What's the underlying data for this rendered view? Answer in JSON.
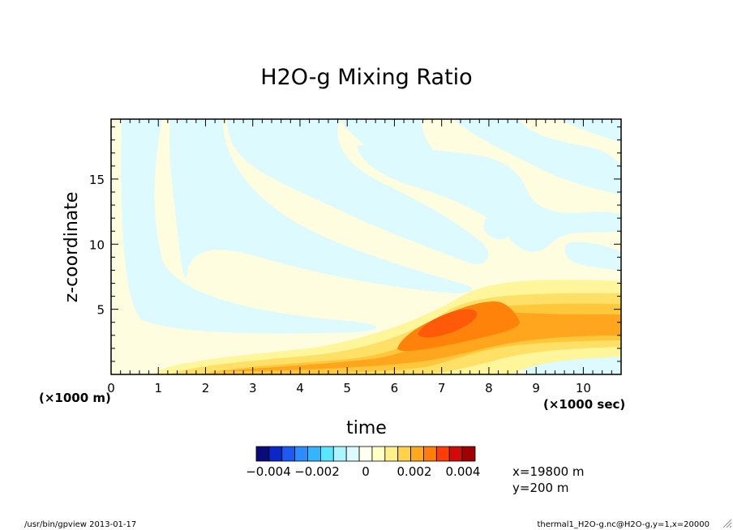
{
  "chart_data": {
    "type": "heatmap",
    "title": "H2O-g Mixing Ratio",
    "xlabel": "time",
    "ylabel": "z-coordinate",
    "x_scale_label": "(×1000 sec)",
    "y_scale_label": "(×1000 m)",
    "xlim": [
      0,
      10.8
    ],
    "ylim": [
      0,
      19.6
    ],
    "x_ticks": [
      "0",
      "1",
      "2",
      "3",
      "4",
      "5",
      "6",
      "7",
      "8",
      "9",
      "10"
    ],
    "y_ticks": [
      "5",
      "10",
      "15"
    ],
    "colorbar": {
      "colors": [
        "#0a0a78",
        "#0a28c8",
        "#1e5af0",
        "#2d8cff",
        "#37b4ff",
        "#5ae6ff",
        "#aaf5ff",
        "#dcfaff",
        "#fffff0",
        "#ffffc8",
        "#fff08c",
        "#ffd24b",
        "#ffaa1e",
        "#ff7d0a",
        "#ff3c0a",
        "#d20a0a",
        "#a00000"
      ],
      "tick_labels": [
        "−0.004",
        "−0.002",
        "0",
        "0.002",
        "0.004"
      ],
      "tick_values": [
        -0.004,
        -0.002,
        0,
        0.002,
        0.004
      ]
    },
    "regions": [
      {
        "level": "slightly-positive",
        "color": "#fffde0"
      },
      {
        "level": "slightly-negative",
        "color": "#dcfaff"
      },
      {
        "level": "0.0005",
        "color": "#fff59a"
      },
      {
        "level": "0.001",
        "color": "#ffe066"
      },
      {
        "level": "0.0015",
        "color": "#ffc83c"
      },
      {
        "level": "0.002",
        "color": "#ffa51e"
      },
      {
        "level": "0.003",
        "color": "#ff820a"
      },
      {
        "level": "0.0035",
        "color": "#ff5a0a"
      }
    ],
    "grid": false,
    "legend": "bottom"
  },
  "annotations": {
    "slice_x": "x=19800 m",
    "slice_y": "y=200 m",
    "footer_left": "/usr/bin/gpview  2013-01-17",
    "footer_right": "thermal1_H2O-g.nc@H2O-g,y=1,x=20000"
  }
}
